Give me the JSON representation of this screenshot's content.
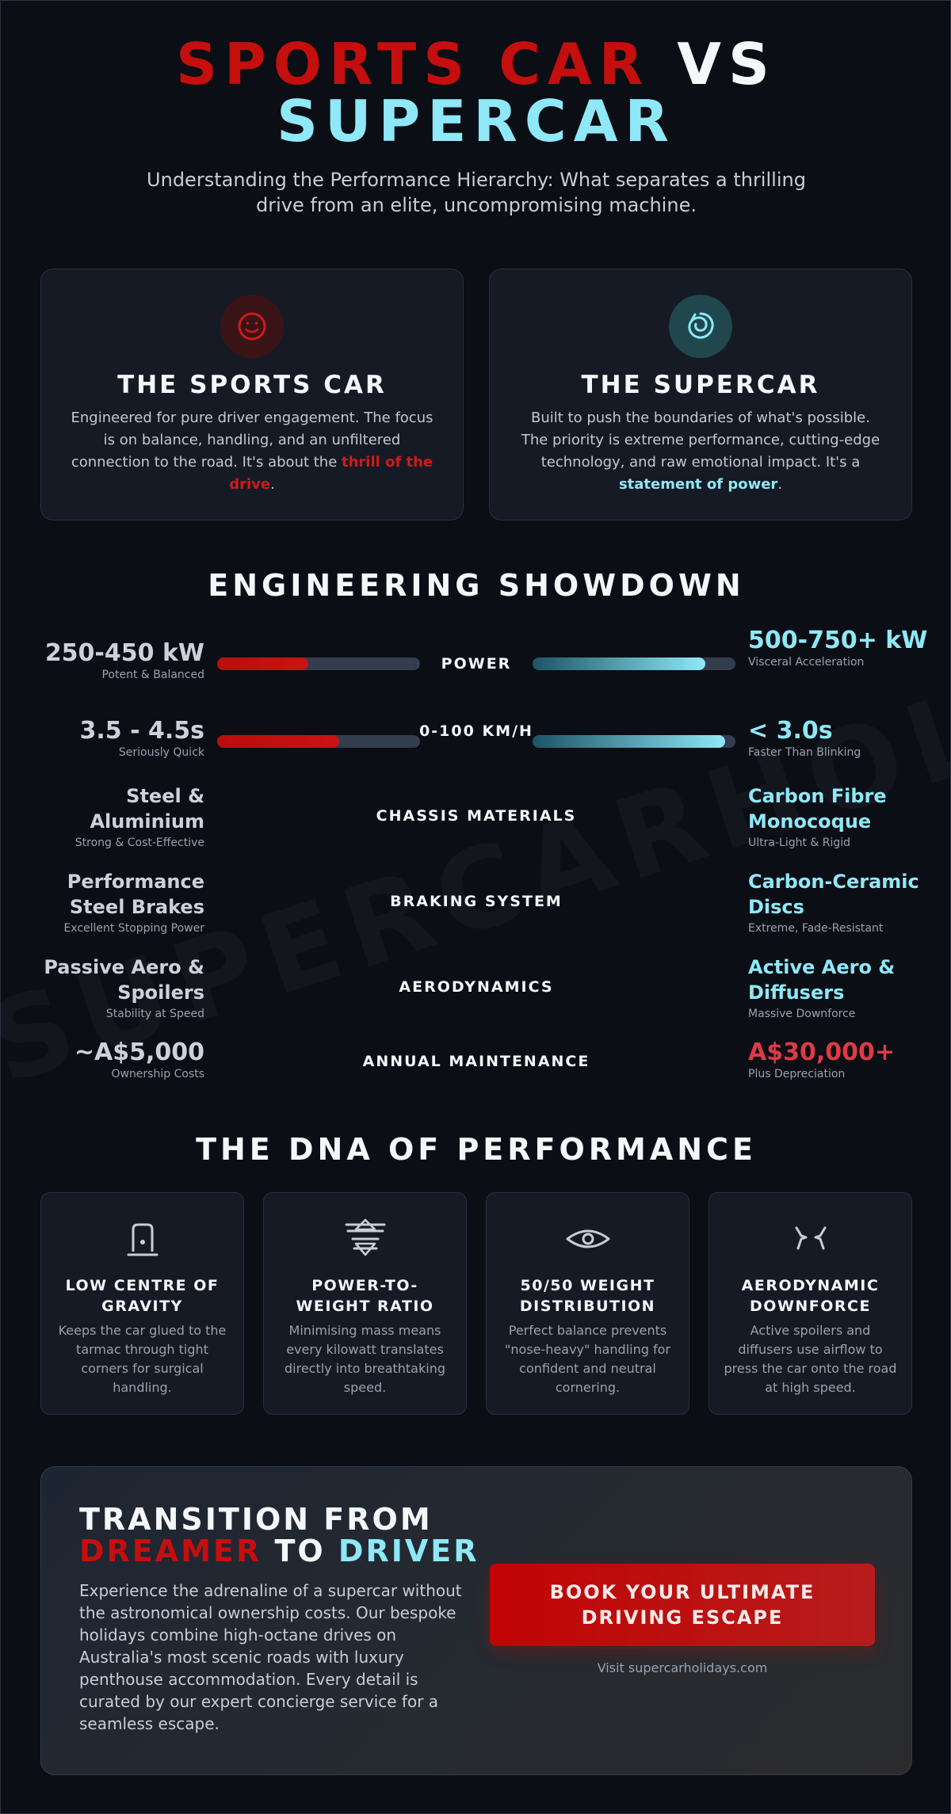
{
  "header": {
    "title_part1": "SPORTS CAR",
    "title_part2": "VS",
    "title_part3": "SUPERCAR",
    "subtitle": "Understanding the Performance Hierarchy: What separates a thrilling drive from an elite, uncompromising machine."
  },
  "watermark": "SUPERCARHOLIDAYS",
  "classes": {
    "sports": {
      "icon": "smiley-face-icon",
      "title": "THE SPORTS CAR",
      "desc_before": "Engineered for pure driver engagement. The focus is on balance, handling, and an unfiltered connection to the road. It's about the ",
      "highlight": "thrill of the drive",
      "desc_after": "."
    },
    "super": {
      "icon": "swirl-icon",
      "title": "THE SUPERCAR",
      "desc_before": "Built to push the boundaries of what's possible. The priority is extreme performance, cutting-edge technology, and raw emotional impact. It's a ",
      "highlight": "statement of power",
      "desc_after": "."
    }
  },
  "showdown": {
    "title": "ENGINEERING SHOWDOWN",
    "rows": [
      {
        "metric": "POWER",
        "left_value": "250-450 kW",
        "left_sub": "Potent & Balanced",
        "right_value": "500-750+ kW",
        "right_sub": "Visceral Acceleration",
        "left_fill": 0.45,
        "right_fill": 0.85
      },
      {
        "metric": "0-100 KM/H",
        "left_value": "3.5 - 4.5s",
        "left_sub": "Seriously Quick",
        "right_value": "< 3.0s",
        "right_sub": "Faster Than Blinking",
        "left_fill": 0.6,
        "right_fill": 0.95
      },
      {
        "metric": "CHASSIS MATERIALS",
        "left_value": "Steel & Aluminium",
        "left_sub": "Strong & Cost-Effective",
        "right_value": "Carbon Fibre Monocoque",
        "right_sub": "Ultra-Light & Rigid"
      },
      {
        "metric": "BRAKING SYSTEM",
        "left_value": "Performance Steel Brakes",
        "left_sub": "Excellent Stopping Power",
        "right_value": "Carbon-Ceramic Discs",
        "right_sub": "Extreme, Fade-Resistant"
      },
      {
        "metric": "AERODYNAMICS",
        "left_value": "Passive Aero & Spoilers",
        "left_sub": "Stability at Speed",
        "right_value": "Active Aero & Diffusers",
        "right_sub": "Massive Downforce"
      },
      {
        "metric": "ANNUAL MAINTENANCE",
        "left_value": "~A$5,000",
        "left_sub": "Ownership Costs",
        "right_value": "A$30,000+",
        "right_sub": "Plus Depreciation"
      }
    ]
  },
  "dna": {
    "title": "THE DNA OF PERFORMANCE",
    "cards": [
      {
        "icon": "low-centre-gravity-icon",
        "title": "LOW CENTRE OF GRAVITY",
        "desc": "Keeps the car glued to the tarmac through tight corners for surgical handling."
      },
      {
        "icon": "weight-ratio-icon",
        "title": "POWER-TO-WEIGHT RATIO",
        "desc": "Minimising mass means every kilowatt translates directly into breathtaking speed."
      },
      {
        "icon": "eye-icon",
        "title": "50/50 WEIGHT DISTRIBUTION",
        "desc": "Perfect balance prevents \"nose-heavy\" handling for confident and neutral cornering."
      },
      {
        "icon": "downforce-icon",
        "title": "AERODYNAMIC DOWNFORCE",
        "desc": "Active spoilers and diffusers use airflow to press the car onto the road at high speed."
      }
    ]
  },
  "cta": {
    "title_line1": "TRANSITION FROM",
    "title_red": "DREAMER",
    "title_to": "TO",
    "title_cyan": "DRIVER",
    "text": "Experience the adrenaline of a supercar without the astronomical ownership costs. Our bespoke holidays combine high-octane drives on Australia's most scenic roads with luxury penthouse accommodation. Every detail is curated by our expert concierge service for a seamless escape.",
    "button": "BOOK YOUR ULTIMATE DRIVING ESCAPE",
    "link": "Visit supercarholidays.com"
  },
  "colors": {
    "sports_red": "#c50e0e",
    "super_cyan": "#8ee8f7",
    "background": "#0b0e14",
    "warning_red": "#df3a45"
  }
}
